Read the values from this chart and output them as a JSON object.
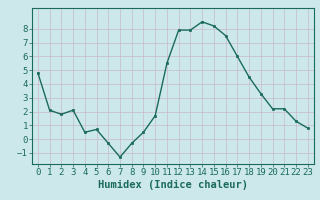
{
  "x": [
    0,
    1,
    2,
    3,
    4,
    5,
    6,
    7,
    8,
    9,
    10,
    11,
    12,
    13,
    14,
    15,
    16,
    17,
    18,
    19,
    20,
    21,
    22,
    23
  ],
  "y": [
    4.8,
    2.1,
    1.8,
    2.1,
    0.5,
    0.7,
    -0.3,
    -1.3,
    -0.3,
    0.5,
    1.7,
    5.5,
    7.9,
    7.9,
    8.5,
    8.2,
    7.5,
    6.0,
    4.5,
    3.3,
    2.2,
    2.2,
    1.3,
    0.8
  ],
  "line_color": "#1a6b5a",
  "marker": "s",
  "marker_size": 2,
  "bg_color": "#cce8ea",
  "grid_color": "#c8b8cc",
  "xlabel": "Humidex (Indice chaleur)",
  "ylim": [
    -1.8,
    9.5
  ],
  "xlim": [
    -0.5,
    23.5
  ],
  "yticks": [
    -1,
    0,
    1,
    2,
    3,
    4,
    5,
    6,
    7,
    8
  ],
  "xticks": [
    0,
    1,
    2,
    3,
    4,
    5,
    6,
    7,
    8,
    9,
    10,
    11,
    12,
    13,
    14,
    15,
    16,
    17,
    18,
    19,
    20,
    21,
    22,
    23
  ],
  "tick_color": "#1a6b5a",
  "label_color": "#1a6b5a",
  "xlabel_fontsize": 7.5,
  "tick_fontsize": 6.5,
  "linewidth": 1.0,
  "spine_color": "#1a6b5a"
}
